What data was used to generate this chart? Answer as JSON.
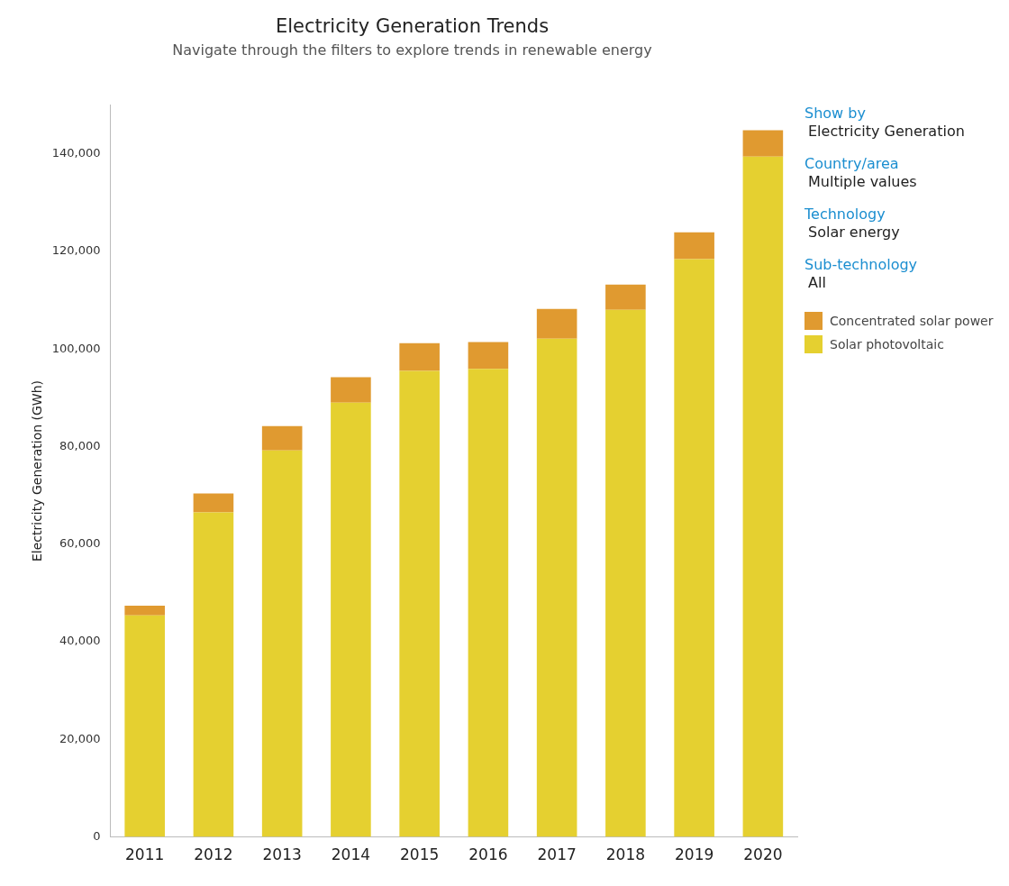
{
  "chart_data": {
    "type": "bar",
    "title": "Electricity Generation Trends",
    "subtitle": "Navigate through the filters to explore trends in renewable energy",
    "ylabel": "Electricity Generation (GWh)",
    "categories": [
      "2011",
      "2012",
      "2013",
      "2014",
      "2015",
      "2016",
      "2017",
      "2018",
      "2019",
      "2020"
    ],
    "series": [
      {
        "name": "Solar photovoltaic",
        "color": "#e5d030",
        "values": [
          45400,
          66500,
          79200,
          89000,
          95500,
          95900,
          102100,
          108000,
          118400,
          139400
        ]
      },
      {
        "name": "Concentrated solar power",
        "color": "#e09a30",
        "values": [
          2000,
          3900,
          5000,
          5200,
          5700,
          5500,
          6100,
          5200,
          5500,
          5400
        ]
      }
    ],
    "stacked": true,
    "ylim": [
      0,
      150000
    ],
    "yticks": [
      0,
      {
        "value": 20000,
        "label": "20,000"
      },
      {
        "value": 40000,
        "label": "40,000"
      },
      {
        "value": 60000,
        "label": "60,000"
      },
      {
        "value": 80000,
        "label": "80,000"
      },
      {
        "value": 100000,
        "label": "100,000"
      },
      {
        "value": 120000,
        "label": "120,000"
      },
      {
        "value": 140000,
        "label": "140,000"
      }
    ],
    "grid": false,
    "legend": "right",
    "annotations": [
      "Show by",
      "Electricity Generation",
      "Country/area",
      "Multiple values",
      "Technology",
      "Solar energy",
      "Sub-technology",
      "All"
    ]
  }
}
